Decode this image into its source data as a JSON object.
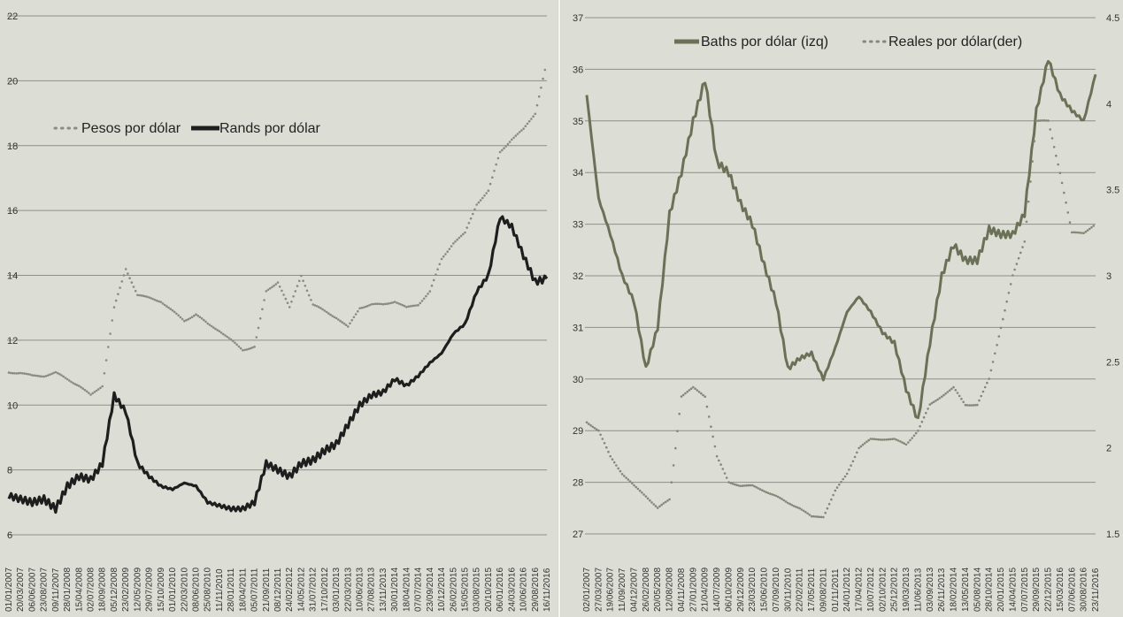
{
  "chart_data": [
    {
      "type": "line",
      "title": "",
      "xlabel": "",
      "ylabel": "",
      "ylim": [
        6,
        22
      ],
      "yticks": [
        "6",
        "8",
        "10",
        "12",
        "14",
        "16",
        "18",
        "20",
        "22"
      ],
      "grid": true,
      "legend_position": "upper-left",
      "categories": [
        "01/01/2007",
        "20/03/2007",
        "06/06/2007",
        "23/08/2007",
        "09/11/2007",
        "28/01/2008",
        "15/04/2008",
        "02/07/2008",
        "18/09/2008",
        "05/12/2008",
        "23/02/2009",
        "12/05/2009",
        "29/07/2009",
        "15/10/2009",
        "01/01/2010",
        "22/03/2010",
        "08/06/2010",
        "25/08/2010",
        "11/11/2010",
        "28/01/2011",
        "18/04/2011",
        "05/07/2011",
        "21/09/2011",
        "08/12/2011",
        "24/02/2012",
        "14/05/2012",
        "31/07/2012",
        "17/10/2012",
        "03/01/2013",
        "22/03/2013",
        "10/06/2013",
        "27/08/2013",
        "13/11/2013",
        "30/01/2014",
        "18/04/2014",
        "07/07/2014",
        "23/09/2014",
        "10/12/2014",
        "26/02/2015",
        "15/05/2015",
        "03/08/2015",
        "20/10/2015",
        "06/01/2016",
        "24/03/2016",
        "10/06/2016",
        "29/08/2016",
        "16/11/2016"
      ],
      "series": [
        {
          "name": "Pesos por dólar",
          "style": "dotted",
          "color": "#8a8c84",
          "values": [
            11.0,
            11.0,
            10.9,
            10.9,
            11.0,
            10.8,
            10.6,
            10.3,
            10.6,
            13.0,
            14.2,
            13.4,
            13.3,
            13.2,
            12.9,
            12.6,
            12.8,
            12.5,
            12.3,
            12.0,
            11.7,
            11.8,
            13.5,
            13.8,
            13.0,
            14.0,
            13.1,
            12.9,
            12.7,
            12.4,
            13.0,
            13.1,
            13.1,
            13.2,
            13.0,
            13.1,
            13.5,
            14.5,
            15.0,
            15.3,
            16.2,
            16.6,
            17.8,
            18.2,
            18.5,
            19.0,
            20.6
          ]
        },
        {
          "name": "Rands por dólar",
          "style": "solid",
          "color": "#1e1e1e",
          "values": [
            7.2,
            7.1,
            7.0,
            7.1,
            6.8,
            7.5,
            7.8,
            7.7,
            8.2,
            10.3,
            9.8,
            8.2,
            7.8,
            7.5,
            7.4,
            7.6,
            7.5,
            7.0,
            6.9,
            6.8,
            6.8,
            7.0,
            8.2,
            8.0,
            7.8,
            8.2,
            8.3,
            8.6,
            8.8,
            9.4,
            10.0,
            10.3,
            10.4,
            10.8,
            10.6,
            10.9,
            11.3,
            11.6,
            12.2,
            12.5,
            13.5,
            14.0,
            15.8,
            15.5,
            14.6,
            13.8,
            13.9
          ]
        }
      ]
    },
    {
      "type": "line",
      "title": "",
      "xlabel": "",
      "ylabel": "",
      "ylim": [
        27,
        37
      ],
      "y2lim": [
        1.5,
        4.5
      ],
      "yticks": [
        "27",
        "28",
        "29",
        "30",
        "31",
        "32",
        "33",
        "34",
        "35",
        "36",
        "37"
      ],
      "y2ticks": [
        "1.5",
        "2",
        "2.5",
        "3",
        "3.5",
        "4",
        "4.5"
      ],
      "grid": true,
      "legend_position": "top",
      "categories": [
        "02/01/2007",
        "27/03/2007",
        "19/06/2007",
        "11/09/2007",
        "04/12/2007",
        "26/02/2008",
        "20/05/2008",
        "12/08/2008",
        "04/11/2008",
        "27/01/2009",
        "21/04/2009",
        "14/07/2009",
        "06/10/2009",
        "29/12/2009",
        "23/03/2010",
        "15/06/2010",
        "07/09/2010",
        "30/11/2010",
        "22/02/2011",
        "17/05/2011",
        "09/08/2011",
        "01/11/2011",
        "24/01/2012",
        "17/04/2012",
        "10/07/2012",
        "02/10/2012",
        "25/12/2012",
        "19/03/2013",
        "11/06/2013",
        "03/09/2013",
        "26/11/2013",
        "18/02/2014",
        "13/05/2014",
        "05/08/2014",
        "28/10/2014",
        "20/01/2015",
        "14/04/2015",
        "07/07/2015",
        "29/09/2015",
        "22/12/2015",
        "15/03/2016",
        "07/06/2016",
        "30/08/2016",
        "23/11/2016"
      ],
      "series": [
        {
          "name": "Baths por dólar (izq)",
          "axis": "left",
          "style": "solid",
          "color": "#6b7157",
          "values": [
            35.5,
            33.5,
            32.8,
            32.0,
            31.5,
            30.2,
            31.0,
            33.2,
            34.0,
            35.0,
            35.8,
            34.2,
            34.0,
            33.4,
            33.0,
            32.2,
            31.5,
            30.2,
            30.4,
            30.5,
            30.0,
            30.6,
            31.3,
            31.6,
            31.3,
            30.9,
            30.7,
            29.8,
            29.2,
            30.7,
            32.0,
            32.6,
            32.3,
            32.3,
            32.9,
            32.8,
            32.8,
            33.2,
            35.2,
            36.2,
            35.5,
            35.2,
            35.0,
            35.9
          ]
        },
        {
          "name": "Reales por dólar(der)",
          "axis": "right",
          "style": "dotted",
          "color": "#858878",
          "values": [
            2.15,
            2.1,
            1.95,
            1.85,
            1.78,
            1.72,
            1.65,
            1.7,
            2.3,
            2.35,
            2.3,
            1.95,
            1.8,
            1.78,
            1.78,
            1.75,
            1.72,
            1.68,
            1.65,
            1.6,
            1.6,
            1.75,
            1.85,
            2.0,
            2.05,
            2.05,
            2.05,
            2.02,
            2.1,
            2.25,
            2.3,
            2.35,
            2.25,
            2.25,
            2.4,
            2.7,
            3.0,
            3.2,
            3.9,
            3.9,
            3.6,
            3.25,
            3.25,
            3.3
          ]
        }
      ]
    }
  ]
}
